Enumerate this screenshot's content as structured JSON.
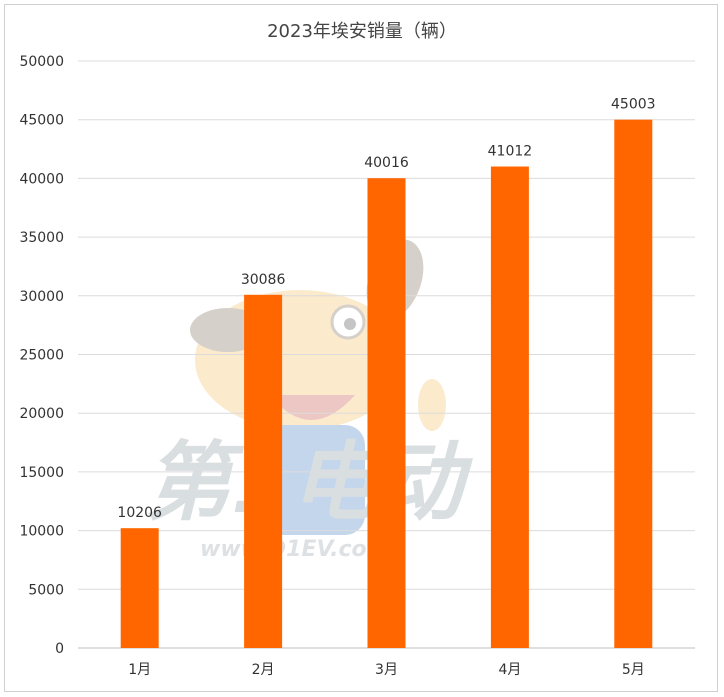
{
  "chart_data": {
    "type": "bar",
    "title": "2023年埃安销量（辆）",
    "categories": [
      "1月",
      "2月",
      "3月",
      "4月",
      "5月"
    ],
    "values": [
      10206,
      30086,
      40016,
      41012,
      45003
    ],
    "ylim": [
      0,
      50000
    ],
    "yticks": [
      0,
      5000,
      10000,
      15000,
      20000,
      25000,
      30000,
      35000,
      40000,
      45000,
      50000
    ],
    "grid": true,
    "bar_color": "#ff6600",
    "data_labels": true
  },
  "watermark": {
    "brand": "第1电动",
    "url": "www.D1EV.com",
    "mascot": "dog-mascot-icon"
  }
}
